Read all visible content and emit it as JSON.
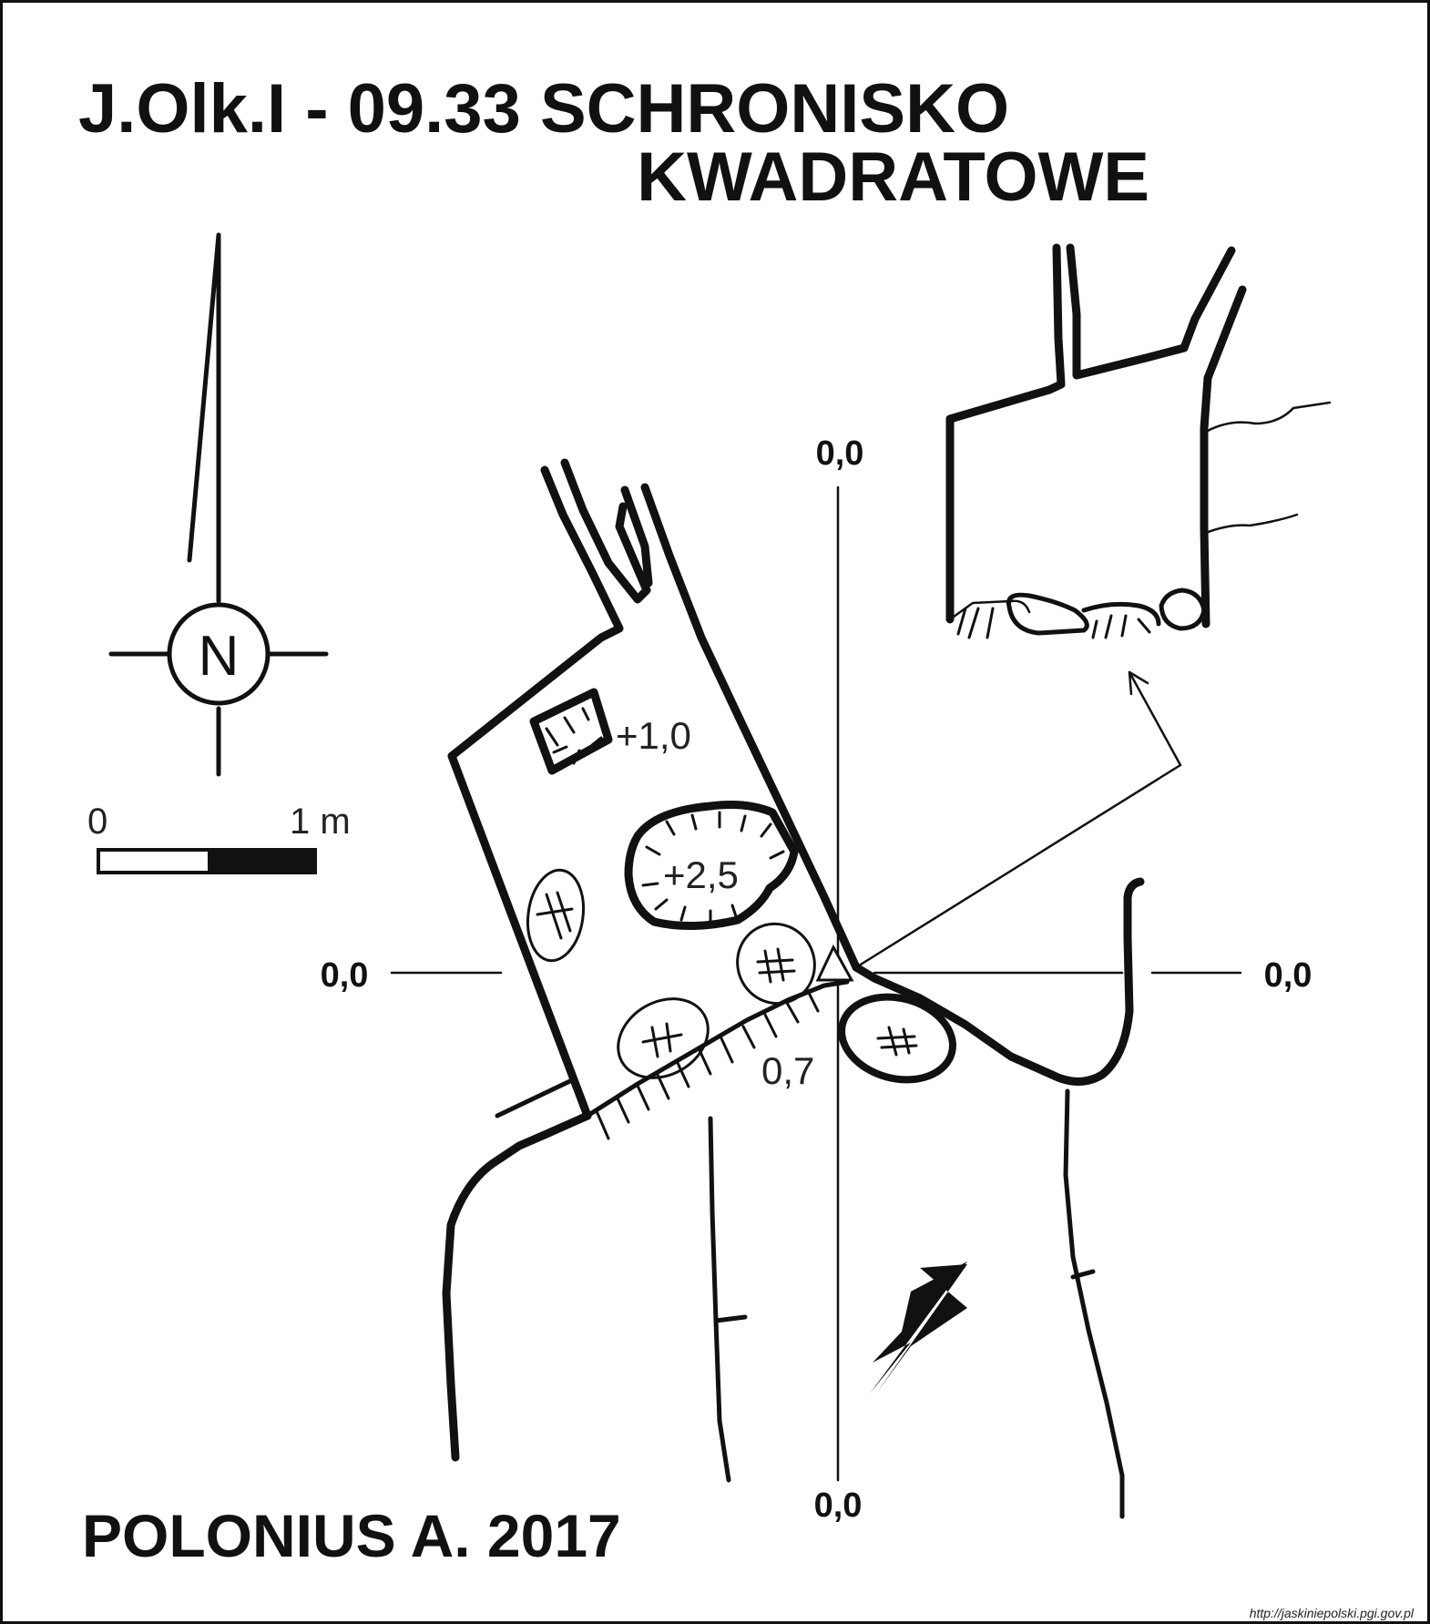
{
  "title": {
    "line1": "J.Olk.I - 09.33 SCHRONISKO",
    "line2": "KWADRATOWE"
  },
  "author": "POLONIUS A.  2017",
  "source": "http://jaskiniepolski.pgi.gov.pl",
  "compass": {
    "label": "N",
    "icon": "north-arrow-icon"
  },
  "scale_bar": {
    "start_label": "0",
    "end_label": "1 m"
  },
  "section_labels": {
    "top": "0,0",
    "bottom": "0,0",
    "left": "0,0",
    "right": "0,0"
  },
  "elevations": {
    "upper_block": "+1,0",
    "central_block": "+2,5",
    "entrance_floor": "0,7"
  },
  "colors": {
    "ink": "#111111",
    "paper": "#ffffff"
  }
}
